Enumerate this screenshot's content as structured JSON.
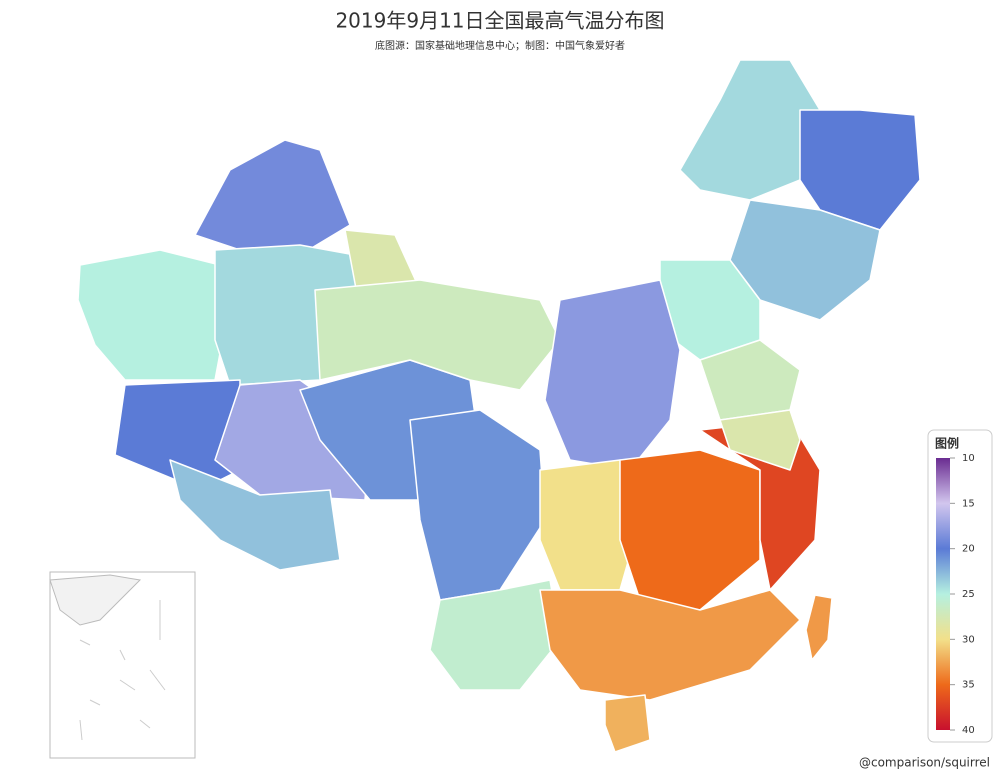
{
  "title": "2019年9月11日全国最高气温分布图",
  "subtitle": "底图源：国家基础地理信息中心；制图：中国气象爱好者",
  "map": {
    "values": [
      19,
      25,
      24,
      28,
      20,
      17,
      23,
      21,
      27,
      24,
      20,
      23,
      25,
      18,
      27,
      21,
      26,
      30,
      35,
      37,
      33,
      32,
      33,
      28
    ]
  },
  "legend": {
    "title": "图例",
    "range": [
      10,
      40
    ],
    "ticks": [
      10,
      15,
      20,
      25,
      30,
      35,
      40
    ],
    "colors": [
      "#6a2c91",
      "#d2c6ee",
      "#5b7bd6",
      "#b5f0e0",
      "#f2e08a",
      "#ee6a1a",
      "#c8102e"
    ]
  },
  "credit": "@comparison/squirrel"
}
